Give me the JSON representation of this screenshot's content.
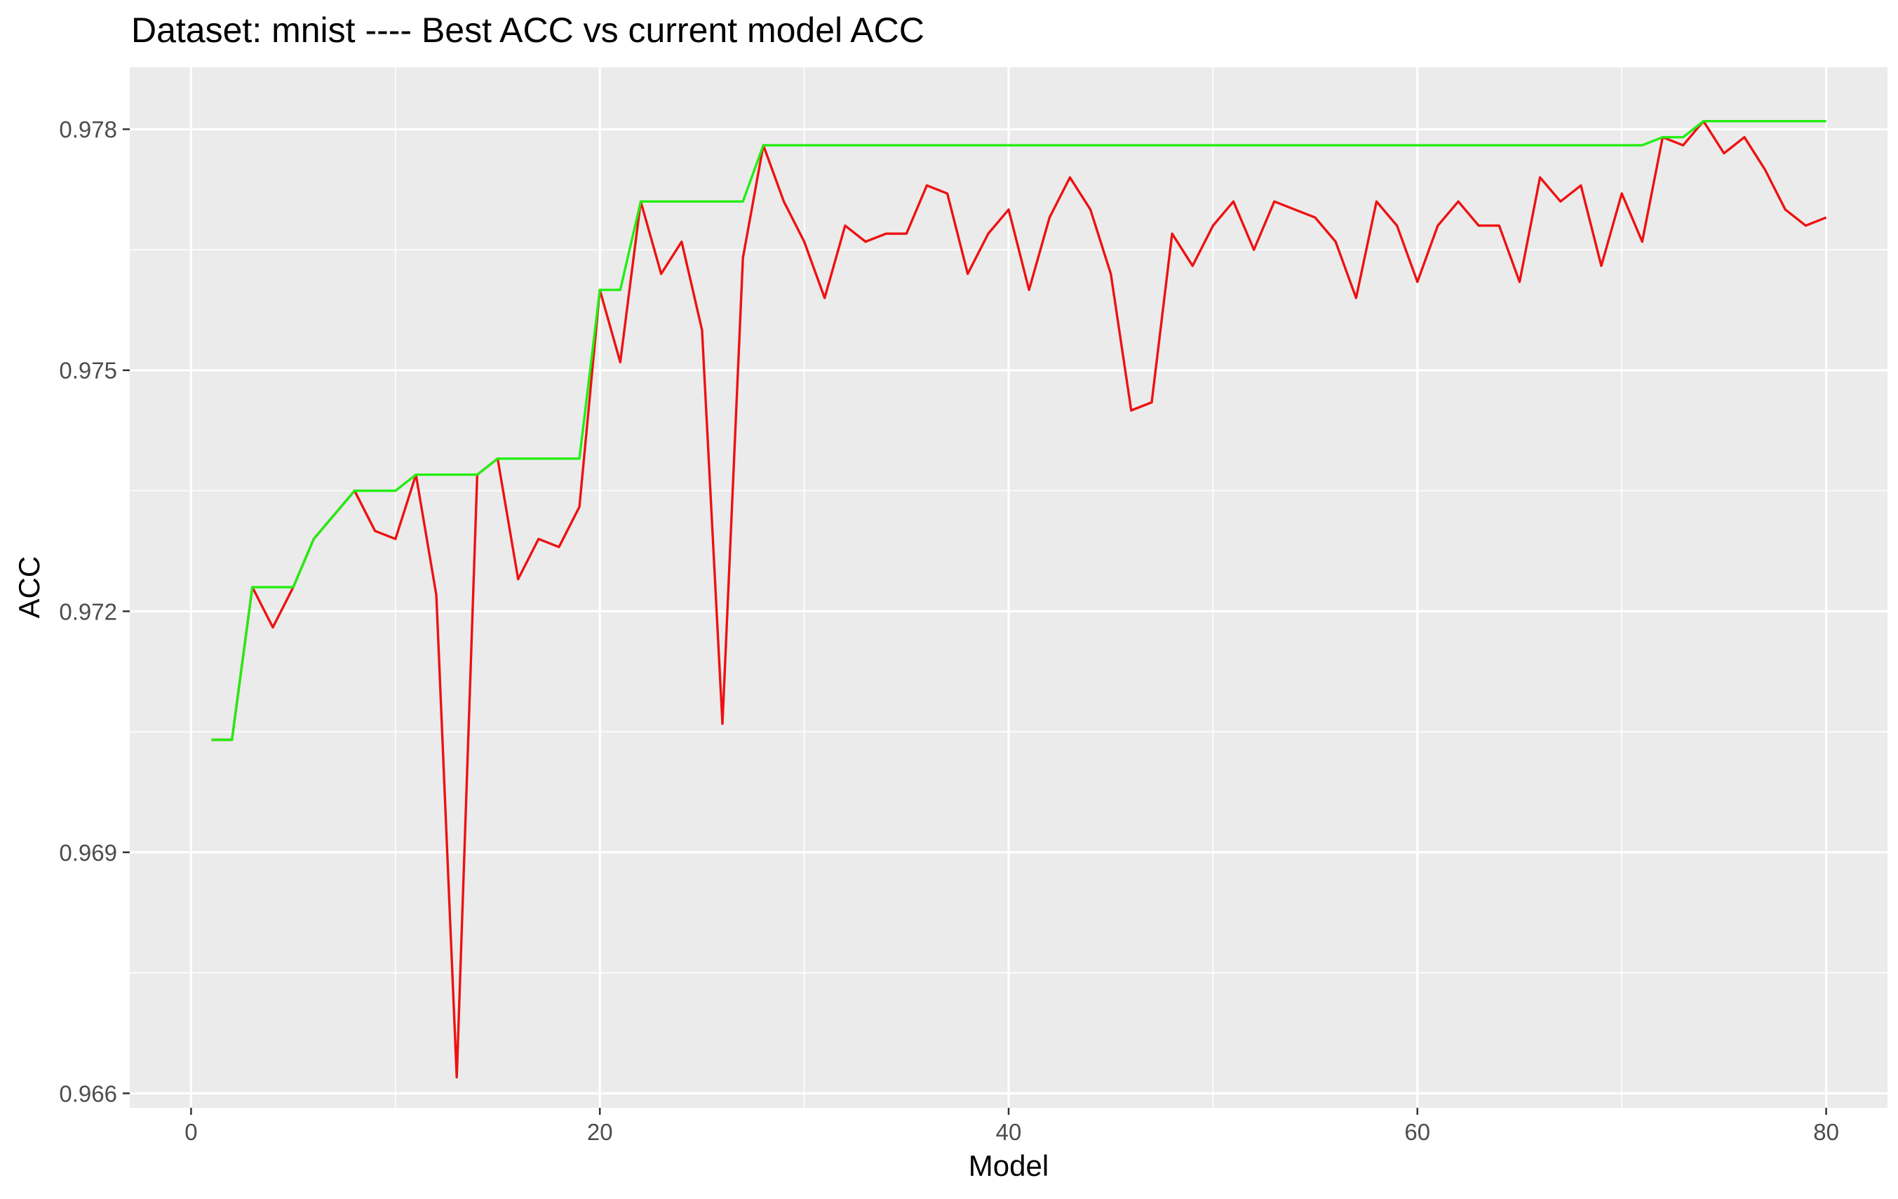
{
  "chart_data": {
    "type": "line",
    "title": "Dataset:  mnist  ---- Best ACC vs current model ACC",
    "xlabel": "Model",
    "ylabel": "ACC",
    "xlim": [
      -3,
      83
    ],
    "ylim": [
      0.96582,
      0.97877
    ],
    "x_ticks": [
      0,
      20,
      40,
      60,
      80
    ],
    "x_tick_labels": [
      "0",
      "20",
      "40",
      "60",
      "80"
    ],
    "y_ticks": [
      0.966,
      0.969,
      0.972,
      0.975,
      0.978
    ],
    "y_tick_labels": [
      "0.966",
      "0.969",
      "0.972",
      "0.975",
      "0.978"
    ],
    "grid": true,
    "background": "#ebebeb",
    "series": [
      {
        "color": "#ee1111",
        "x": [
          1,
          2,
          3,
          4,
          5,
          6,
          7,
          8,
          9,
          10,
          11,
          12,
          13,
          14,
          15,
          16,
          17,
          18,
          19,
          20,
          21,
          22,
          23,
          24,
          25,
          26,
          27,
          28,
          29,
          30,
          31,
          32,
          33,
          34,
          35,
          36,
          37,
          38,
          39,
          40,
          41,
          42,
          43,
          44,
          45,
          46,
          47,
          48,
          49,
          50,
          51,
          52,
          53,
          54,
          55,
          56,
          57,
          58,
          59,
          60,
          61,
          62,
          63,
          64,
          65,
          66,
          67,
          68,
          69,
          70,
          71,
          72,
          73,
          74,
          75,
          76,
          77,
          78,
          79,
          80
        ],
        "values": [
          0.9704,
          0.9704,
          0.9723,
          0.9718,
          0.9723,
          0.9729,
          0.9732,
          0.9735,
          0.973,
          0.9729,
          0.9737,
          0.9722,
          0.9662,
          0.9737,
          0.9739,
          0.9724,
          0.9729,
          0.9728,
          0.9733,
          0.976,
          0.9751,
          0.9771,
          0.9762,
          0.9766,
          0.9755,
          0.9706,
          0.9764,
          0.9778,
          0.9771,
          0.9766,
          0.9759,
          0.9768,
          0.9766,
          0.9767,
          0.9767,
          0.9773,
          0.9772,
          0.9762,
          0.9767,
          0.977,
          0.976,
          0.9769,
          0.9774,
          0.977,
          0.9762,
          0.9745,
          0.9746,
          0.9767,
          0.9763,
          0.9768,
          0.9771,
          0.9765,
          0.9771,
          0.977,
          0.9769,
          0.9766,
          0.9759,
          0.9771,
          0.9768,
          0.9761,
          0.9768,
          0.9771,
          0.9768,
          0.9768,
          0.9761,
          0.9774,
          0.9771,
          0.9773,
          0.9763,
          0.9772,
          0.9766,
          0.9779,
          0.9778,
          0.9781,
          0.9777,
          0.9779,
          0.9775,
          0.977,
          0.9768,
          0.9769
        ]
      },
      {
        "color": "#22ee11",
        "x": [
          1,
          2,
          3,
          4,
          5,
          6,
          7,
          8,
          9,
          10,
          11,
          12,
          13,
          14,
          15,
          16,
          17,
          18,
          19,
          20,
          21,
          22,
          23,
          24,
          25,
          26,
          27,
          28,
          29,
          30,
          31,
          32,
          33,
          34,
          35,
          36,
          37,
          38,
          39,
          40,
          41,
          42,
          43,
          44,
          45,
          46,
          47,
          48,
          49,
          50,
          51,
          52,
          53,
          54,
          55,
          56,
          57,
          58,
          59,
          60,
          61,
          62,
          63,
          64,
          65,
          66,
          67,
          68,
          69,
          70,
          71,
          72,
          73,
          74,
          75,
          76,
          77,
          78,
          79,
          80
        ],
        "values": [
          0.9704,
          0.9704,
          0.9723,
          0.9723,
          0.9723,
          0.9729,
          0.9732,
          0.9735,
          0.9735,
          0.9735,
          0.9737,
          0.9737,
          0.9737,
          0.9737,
          0.9739,
          0.9739,
          0.9739,
          0.9739,
          0.9739,
          0.976,
          0.976,
          0.9771,
          0.9771,
          0.9771,
          0.9771,
          0.9771,
          0.9771,
          0.9778,
          0.9778,
          0.9778,
          0.9778,
          0.9778,
          0.9778,
          0.9778,
          0.9778,
          0.9778,
          0.9778,
          0.9778,
          0.9778,
          0.9778,
          0.9778,
          0.9778,
          0.9778,
          0.9778,
          0.9778,
          0.9778,
          0.9778,
          0.9778,
          0.9778,
          0.9778,
          0.9778,
          0.9778,
          0.9778,
          0.9778,
          0.9778,
          0.9778,
          0.9778,
          0.9778,
          0.9778,
          0.9778,
          0.9778,
          0.9778,
          0.9778,
          0.9778,
          0.9778,
          0.9778,
          0.9778,
          0.9778,
          0.9778,
          0.9778,
          0.9778,
          0.9779,
          0.9779,
          0.9781,
          0.9781,
          0.9781,
          0.9781,
          0.9781,
          0.9781,
          0.9781
        ]
      }
    ]
  }
}
